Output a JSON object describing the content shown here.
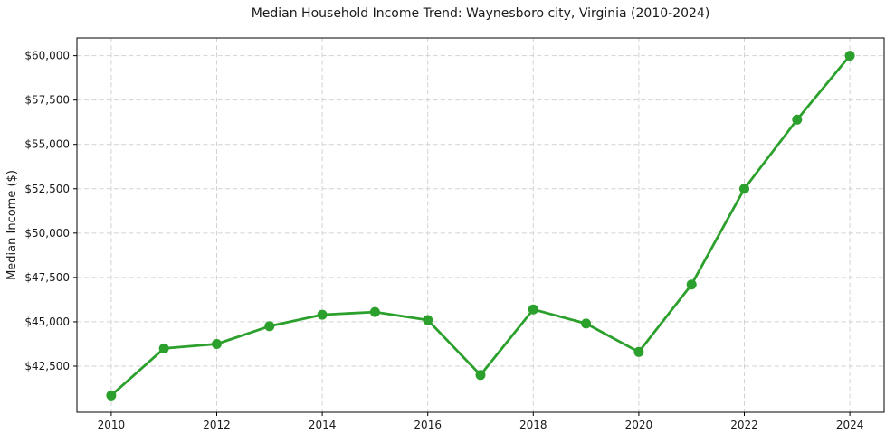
{
  "chart_data": {
    "type": "line",
    "title": "Median Household Income Trend: Waynesboro city, Virginia (2010-2024)",
    "xlabel": "",
    "ylabel": "Median Income ($)",
    "x": [
      2010,
      2011,
      2012,
      2013,
      2014,
      2015,
      2016,
      2017,
      2018,
      2019,
      2020,
      2021,
      2022,
      2023,
      2024
    ],
    "values": [
      40850,
      43500,
      43750,
      44750,
      45400,
      45550,
      45100,
      42000,
      45700,
      44900,
      43300,
      47100,
      52500,
      56400,
      60000
    ],
    "x_tick_values": [
      2010,
      2012,
      2014,
      2016,
      2018,
      2020,
      2022,
      2024
    ],
    "x_tick_labels": [
      "2010",
      "2012",
      "2014",
      "2016",
      "2018",
      "2020",
      "2022",
      "2024"
    ],
    "y_tick_values": [
      42500,
      45000,
      47500,
      50000,
      52500,
      55000,
      57500,
      60000
    ],
    "y_tick_labels": [
      "$42,500",
      "$45,000",
      "$47,500",
      "$50,000",
      "$52,500",
      "$55,000",
      "$57,500",
      "$60,000"
    ],
    "xlim": [
      2009.35,
      2024.65
    ],
    "ylim": [
      39900,
      61000
    ],
    "grid": true,
    "grid_style": "dashed",
    "legend": "none",
    "colors": {
      "line": "#2ca02c",
      "marker": "#2ca02c",
      "grid": "#d2d2d2",
      "spine": "#000000",
      "text": "#1a1a1a",
      "background": "#ffffff"
    },
    "marker": "circle"
  }
}
